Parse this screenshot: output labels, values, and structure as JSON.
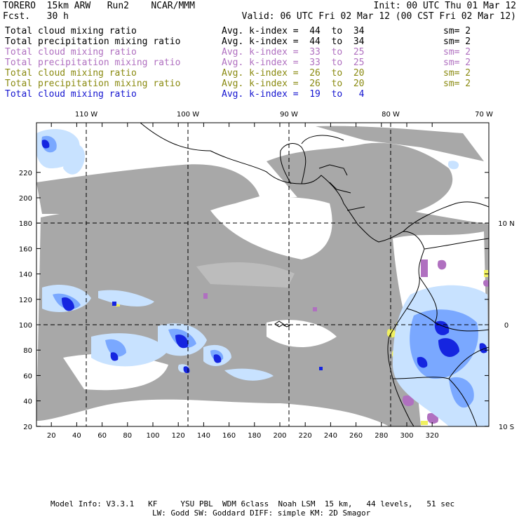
{
  "header": {
    "left_line1": "TORERO  15km ARW   Run2    NCAR/MMM",
    "left_line2": "Fcst.   30 h",
    "right_line1": "Init: 00 UTC Thu 01 Mar 12",
    "right_line2": "Valid: 06 UTC Fri 02 Mar 12 (00 CST Fri 02 Mar 12)"
  },
  "legend": [
    {
      "label": "Total cloud mixing ratio",
      "range": "Avg. k-index =  44  to  34",
      "sm": "sm= 2",
      "color": "#000000"
    },
    {
      "label": "Total precipitation mixing ratio",
      "range": "Avg. k-index =  44  to  34",
      "sm": "sm= 2",
      "color": "#000000"
    },
    {
      "label": "Total cloud mixing ratio",
      "range": "Avg. k-index =  33  to  25",
      "sm": "sm= 2",
      "color": "#b070c0"
    },
    {
      "label": "Total precipitation mixing ratio",
      "range": "Avg. k-index =  33  to  25",
      "sm": "sm= 2",
      "color": "#b070c0"
    },
    {
      "label": "Total cloud mixing ratio",
      "range": "Avg. k-index =  26  to  20",
      "sm": "sm= 2",
      "color": "#8a8a10"
    },
    {
      "label": "Total precipitation mixing ratio",
      "range": "Avg. k-index =  26  to  20",
      "sm": "sm= 2",
      "color": "#8a8a10"
    },
    {
      "label": "Total cloud mixing ratio",
      "range": "Avg. k-index =  19  to   4",
      "sm": "",
      "color": "#1515d0"
    }
  ],
  "map": {
    "lon_labels": [
      "110 W",
      "100 W",
      "90 W",
      "80 W",
      "70 W"
    ],
    "lat_labels": [
      "10 N",
      "0",
      "10 S"
    ],
    "x_ticks": [
      "20",
      "40",
      "60",
      "80",
      "100",
      "120",
      "140",
      "160",
      "180",
      "200",
      "220",
      "240",
      "260",
      "280",
      "300",
      "320"
    ],
    "y_ticks": [
      "20",
      "40",
      "60",
      "80",
      "100",
      "120",
      "140",
      "160",
      "180",
      "200",
      "220"
    ],
    "colors": {
      "gray_cloud": "#a8a8a8",
      "purple": "#b070c0",
      "yellow": "#f0f060",
      "light_blue": "#c8e2ff",
      "mid_blue": "#7aa8ff",
      "deep_blue": "#1525e0",
      "coast": "#000000",
      "grid": "#000000"
    }
  },
  "footer": {
    "line1": "Model Info: V3.3.1   KF     YSU PBL  WDM 6class  Noah LSM  15 km,   44 levels,   51 sec",
    "line2": "LW: Godd SW: Goddard DIFF: simple KM: 2D Smagor"
  }
}
